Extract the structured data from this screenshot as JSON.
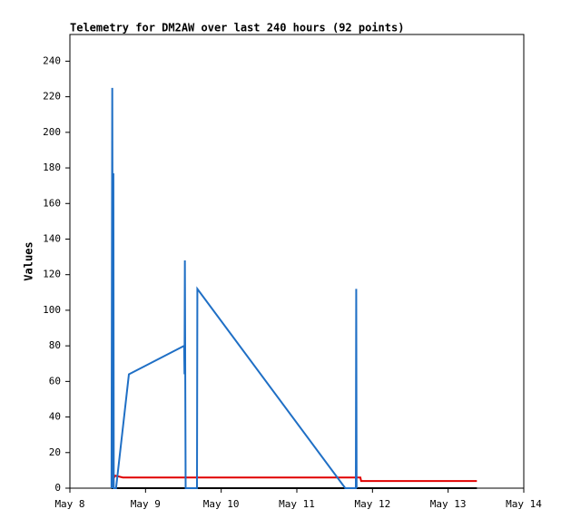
{
  "chart_data": {
    "type": "line",
    "title": "Telemetry for DM2AW over last 240 hours (92 points)",
    "y_label": "Values",
    "xlim": [
      8,
      14
    ],
    "xticks": [
      {
        "value": 8,
        "label": "May 8"
      },
      {
        "value": 9,
        "label": "May 9"
      },
      {
        "value": 10,
        "label": "May 10"
      },
      {
        "value": 11,
        "label": "May 11"
      },
      {
        "value": 12,
        "label": "May 12"
      },
      {
        "value": 13,
        "label": "May 13"
      },
      {
        "value": 14,
        "label": "May 14"
      }
    ],
    "ylim": [
      0,
      255
    ],
    "yticks": [
      0,
      20,
      40,
      60,
      80,
      100,
      120,
      140,
      160,
      180,
      200,
      220,
      240
    ],
    "grid": false,
    "series": [
      {
        "color": "#000000",
        "x": [
          8.55,
          13.38
        ],
        "values": [
          0,
          0
        ]
      },
      {
        "color": "#e00000",
        "x": [
          8.55,
          8.6,
          8.7,
          11.84,
          11.85,
          13.38
        ],
        "values": [
          4,
          7,
          6,
          6,
          4,
          4
        ]
      },
      {
        "color": "#1f6fc5",
        "x": [
          8.55,
          8.56,
          8.57,
          8.575,
          8.58,
          8.61,
          8.78,
          9.51,
          9.515,
          9.52,
          9.53,
          9.68,
          9.685,
          11.64,
          11.78,
          11.785,
          11.79
        ],
        "values": [
          0,
          225,
          0,
          177,
          0,
          0,
          64,
          80,
          64,
          128,
          0,
          0,
          112,
          0,
          0,
          112,
          0
        ]
      }
    ]
  }
}
